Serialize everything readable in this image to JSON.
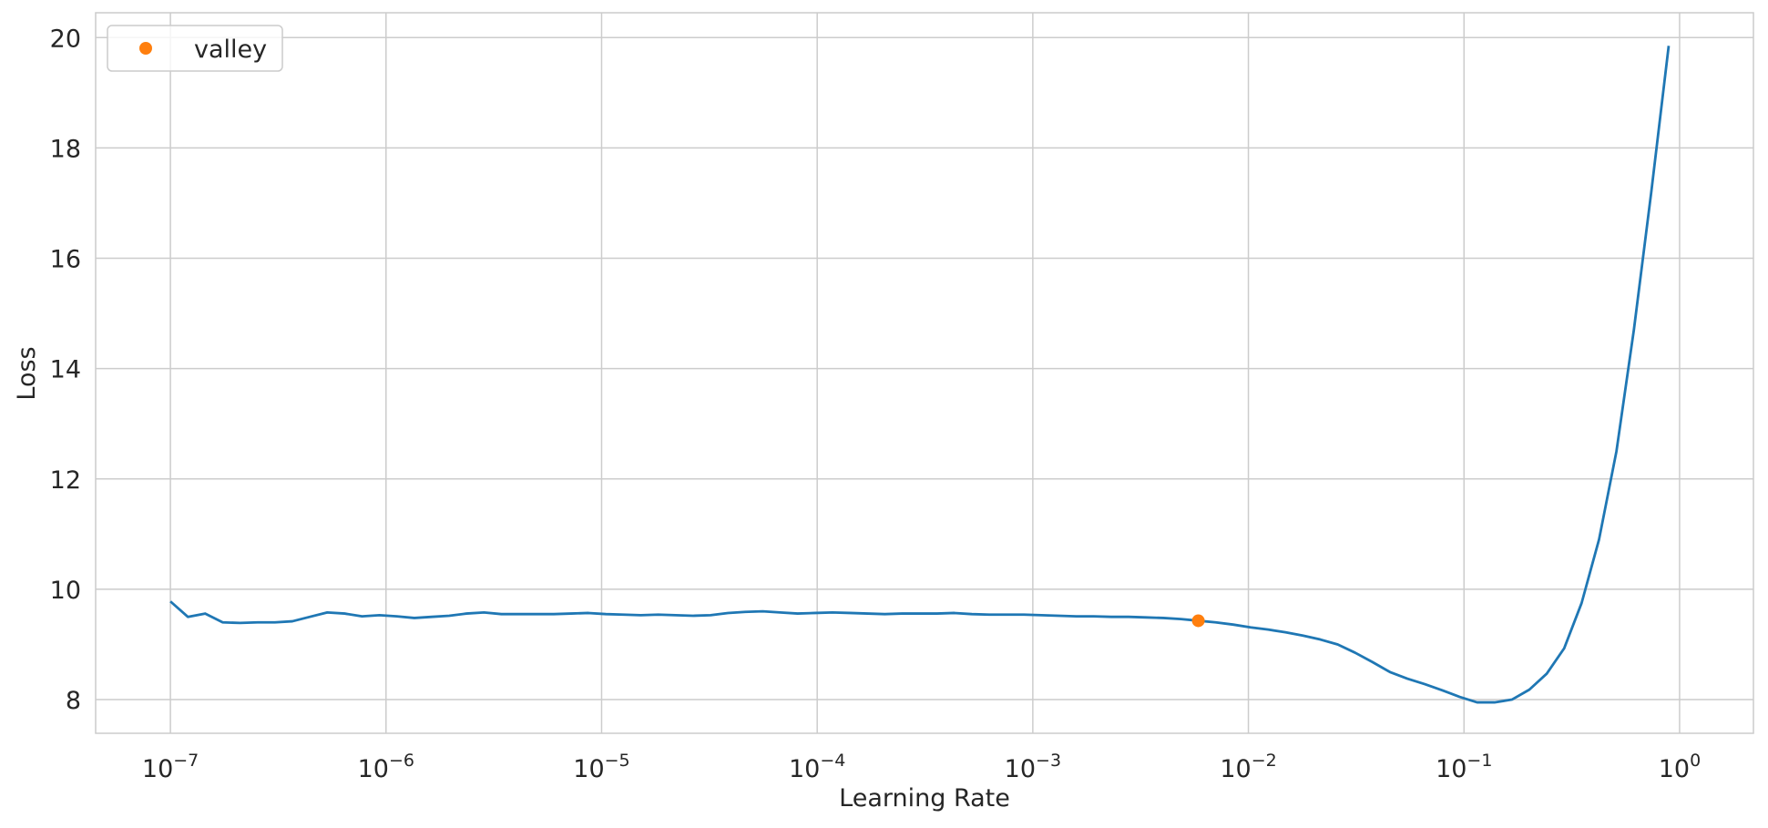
{
  "chart_data": {
    "type": "line",
    "xlabel": "Learning Rate",
    "ylabel": "Loss",
    "xscale": "log",
    "grid": true,
    "legend_loc": "upper-left",
    "xlim": [
      4.5e-08,
      2.2
    ],
    "ylim": [
      7.39,
      20.45
    ],
    "xticks": [
      {
        "value": 1e-07,
        "label": "10−7"
      },
      {
        "value": 1e-06,
        "label": "10−6"
      },
      {
        "value": 1e-05,
        "label": "10−5"
      },
      {
        "value": 0.0001,
        "label": "10−4"
      },
      {
        "value": 0.001,
        "label": "10−3"
      },
      {
        "value": 0.01,
        "label": "10−2"
      },
      {
        "value": 0.1,
        "label": "10−1"
      },
      {
        "value": 1,
        "label": "100"
      }
    ],
    "yticks": [
      8,
      10,
      12,
      14,
      16,
      18,
      20
    ],
    "series": [
      {
        "color": "#1f77b4",
        "style": "line",
        "x": [
          1e-07,
          1.205e-07,
          1.45e-07,
          1.748e-07,
          2.104e-07,
          2.535e-07,
          3.053e-07,
          3.678e-07,
          4.431e-07,
          5.337e-07,
          6.429e-07,
          7.743e-07,
          9.326e-07,
          1.123e-06,
          1.353e-06,
          1.63e-06,
          1.963e-06,
          2.364e-06,
          2.848e-06,
          3.43e-06,
          4.132e-06,
          4.977e-06,
          5.995e-06,
          7.221e-06,
          8.697e-06,
          1.048e-05,
          1.262e-05,
          1.52e-05,
          1.831e-05,
          2.205e-05,
          2.656e-05,
          3.2e-05,
          3.854e-05,
          4.642e-05,
          5.591e-05,
          6.734e-05,
          8.111e-05,
          9.77e-05,
          0.0001177,
          0.0001418,
          0.0001708,
          0.0002057,
          0.0002477,
          0.0002984,
          0.0003594,
          0.0004329,
          0.0005214,
          0.0006281,
          0.0007565,
          0.0009112,
          0.001097,
          0.001322,
          0.001592,
          0.001918,
          0.00231,
          0.002783,
          0.003352,
          0.004037,
          0.004863,
          0.005857,
          0.007055,
          0.008498,
          0.01024,
          0.01233,
          0.01485,
          0.01789,
          0.02154,
          0.02595,
          0.03126,
          0.03765,
          0.04535,
          0.05462,
          0.06579,
          0.07924,
          0.09545,
          0.115,
          0.1385,
          0.1668,
          0.2009,
          0.242,
          0.2915,
          0.3511,
          0.4229,
          0.5094,
          0.6136,
          0.739,
          0.8902
        ],
        "values": [
          9.78,
          9.5,
          9.56,
          9.4,
          9.39,
          9.4,
          9.4,
          9.42,
          9.5,
          9.58,
          9.56,
          9.51,
          9.53,
          9.51,
          9.48,
          9.5,
          9.52,
          9.56,
          9.58,
          9.55,
          9.55,
          9.55,
          9.55,
          9.56,
          9.57,
          9.55,
          9.54,
          9.53,
          9.54,
          9.53,
          9.52,
          9.53,
          9.57,
          9.59,
          9.6,
          9.58,
          9.56,
          9.57,
          9.58,
          9.57,
          9.56,
          9.55,
          9.56,
          9.56,
          9.56,
          9.57,
          9.55,
          9.54,
          9.54,
          9.54,
          9.53,
          9.52,
          9.51,
          9.51,
          9.5,
          9.5,
          9.49,
          9.48,
          9.46,
          9.43,
          9.4,
          9.36,
          9.31,
          9.27,
          9.22,
          9.16,
          9.09,
          9.0,
          8.85,
          8.68,
          8.5,
          8.38,
          8.28,
          8.17,
          8.05,
          7.95,
          7.95,
          8.0,
          8.18,
          8.47,
          8.93,
          9.75,
          10.9,
          12.5,
          14.7,
          17.2,
          19.85
        ]
      },
      {
        "name": "valley",
        "color": "#ff7f0e",
        "style": "marker",
        "x": [
          0.005857
        ],
        "values": [
          9.43
        ]
      }
    ]
  }
}
